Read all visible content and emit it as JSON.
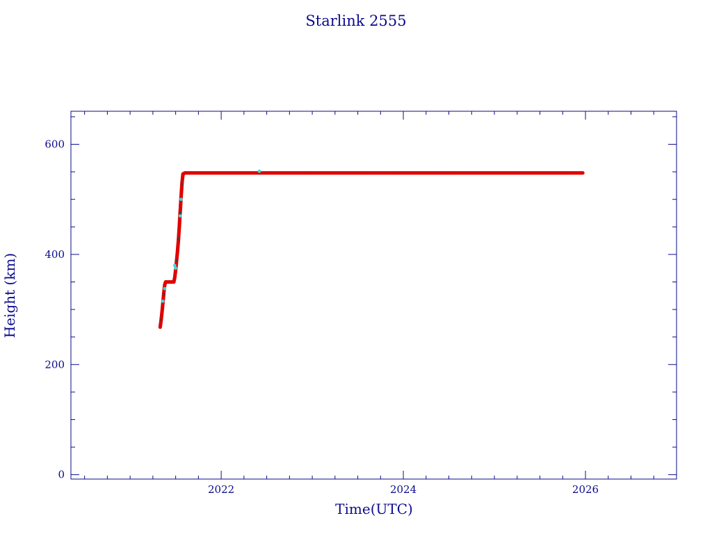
{
  "chart_data": {
    "type": "scatter",
    "title": "Starlink 2555",
    "xlabel": "Time(UTC)",
    "ylabel": "Height (km)",
    "xlim": [
      2020.35,
      2027.0
    ],
    "ylim": [
      -8,
      660
    ],
    "x_ticks": [
      2022,
      2024,
      2026
    ],
    "x_tick_labels": [
      "2022",
      "2024",
      "2026"
    ],
    "y_ticks": [
      0,
      200,
      400,
      600
    ],
    "y_tick_labels": [
      "0",
      "200",
      "400",
      "600"
    ],
    "grid": false,
    "colors": {
      "axis": "#0a0a8c",
      "primary_series": "#e00000",
      "secondary_series": "#40d8d8",
      "dark_markers": "#404040"
    },
    "series": [
      {
        "marker": "dot",
        "color": "#e00000",
        "points": [
          [
            2021.33,
            268
          ],
          [
            2021.34,
            280
          ],
          [
            2021.35,
            295
          ],
          [
            2021.36,
            312
          ],
          [
            2021.37,
            330
          ],
          [
            2021.38,
            345
          ],
          [
            2021.39,
            350
          ],
          [
            2021.42,
            350
          ],
          [
            2021.45,
            350
          ],
          [
            2021.48,
            350
          ],
          [
            2021.49,
            358
          ],
          [
            2021.5,
            372
          ],
          [
            2021.51,
            388
          ],
          [
            2021.52,
            405
          ],
          [
            2021.53,
            425
          ],
          [
            2021.54,
            450
          ],
          [
            2021.55,
            478
          ],
          [
            2021.56,
            505
          ],
          [
            2021.57,
            530
          ],
          [
            2021.58,
            546
          ],
          [
            2021.6,
            548
          ],
          [
            2022.0,
            548
          ],
          [
            2022.5,
            548
          ],
          [
            2023.0,
            548
          ],
          [
            2023.5,
            548
          ],
          [
            2024.0,
            548
          ],
          [
            2024.5,
            548
          ],
          [
            2025.0,
            548
          ],
          [
            2025.5,
            548
          ],
          [
            2025.97,
            548
          ]
        ]
      },
      {
        "marker": "dot",
        "color": "#40d8d8",
        "points": [
          [
            2021.36,
            315
          ],
          [
            2021.38,
            338
          ],
          [
            2021.49,
            380
          ],
          [
            2021.5,
            375
          ],
          [
            2021.55,
            470
          ],
          [
            2021.56,
            500
          ],
          [
            2022.42,
            551
          ]
        ]
      }
    ]
  }
}
